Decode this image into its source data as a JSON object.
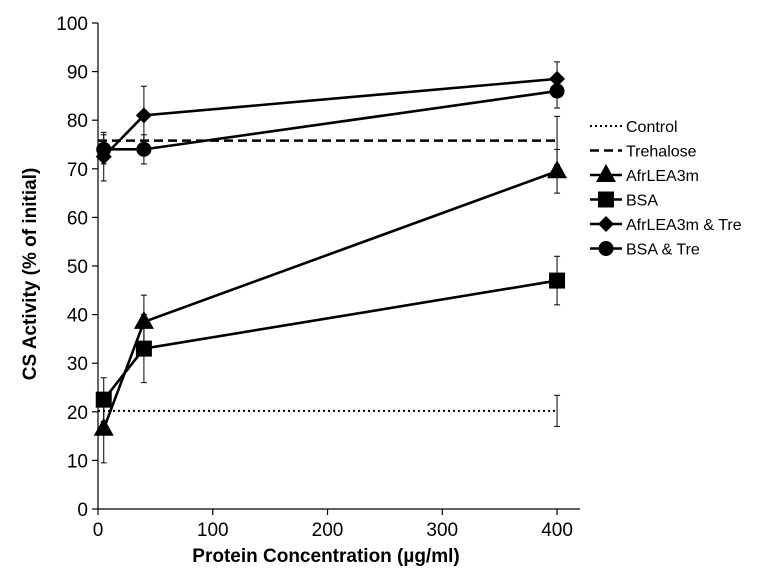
{
  "chart_data": {
    "type": "line",
    "xlabel": "Protein Concentration (µg/ml)",
    "ylabel": "CS Activity (% of initial)",
    "xlim": [
      0,
      420
    ],
    "ylim": [
      0,
      100
    ],
    "xticks": [
      0,
      100,
      200,
      300,
      400
    ],
    "yticks": [
      0,
      10,
      20,
      30,
      40,
      50,
      60,
      70,
      80,
      90,
      100
    ],
    "grid": false,
    "legend_position": "right",
    "series": [
      {
        "name": "Control",
        "line_style": "dotted",
        "marker": "none",
        "points": [
          {
            "x": 0,
            "y": 20.2,
            "err": 0
          },
          {
            "x": 400,
            "y": 20.2,
            "err": 3.2
          }
        ]
      },
      {
        "name": "Trehalose",
        "line_style": "dashed",
        "marker": "none",
        "points": [
          {
            "x": 0,
            "y": 75.8,
            "err": 0
          },
          {
            "x": 400,
            "y": 75.8,
            "err": 5.0
          }
        ]
      },
      {
        "name": "AfrLEA3m",
        "line_style": "solid",
        "marker": "triangle",
        "points": [
          {
            "x": 5,
            "y": 16.5,
            "err": 7.0
          },
          {
            "x": 40,
            "y": 38.5,
            "err": 5.5
          },
          {
            "x": 400,
            "y": 69.5,
            "err": 4.5
          }
        ]
      },
      {
        "name": "BSA",
        "line_style": "solid",
        "marker": "square",
        "points": [
          {
            "x": 5,
            "y": 22.5,
            "err": 4.5
          },
          {
            "x": 40,
            "y": 33.0,
            "err": 7.0
          },
          {
            "x": 400,
            "y": 47.0,
            "err": 5.0
          }
        ]
      },
      {
        "name": "AfrLEA3m & Tre",
        "line_style": "solid",
        "marker": "diamond",
        "points": [
          {
            "x": 5,
            "y": 72.5,
            "err": 5.0
          },
          {
            "x": 40,
            "y": 81.0,
            "err": 6.0
          },
          {
            "x": 400,
            "y": 88.5,
            "err": 3.5
          }
        ]
      },
      {
        "name": "BSA & Tre",
        "line_style": "solid",
        "marker": "circle",
        "points": [
          {
            "x": 5,
            "y": 74.0,
            "err": 3.0
          },
          {
            "x": 40,
            "y": 74.0,
            "err": 3.0
          },
          {
            "x": 400,
            "y": 86.0,
            "err": 3.5
          }
        ]
      }
    ]
  }
}
